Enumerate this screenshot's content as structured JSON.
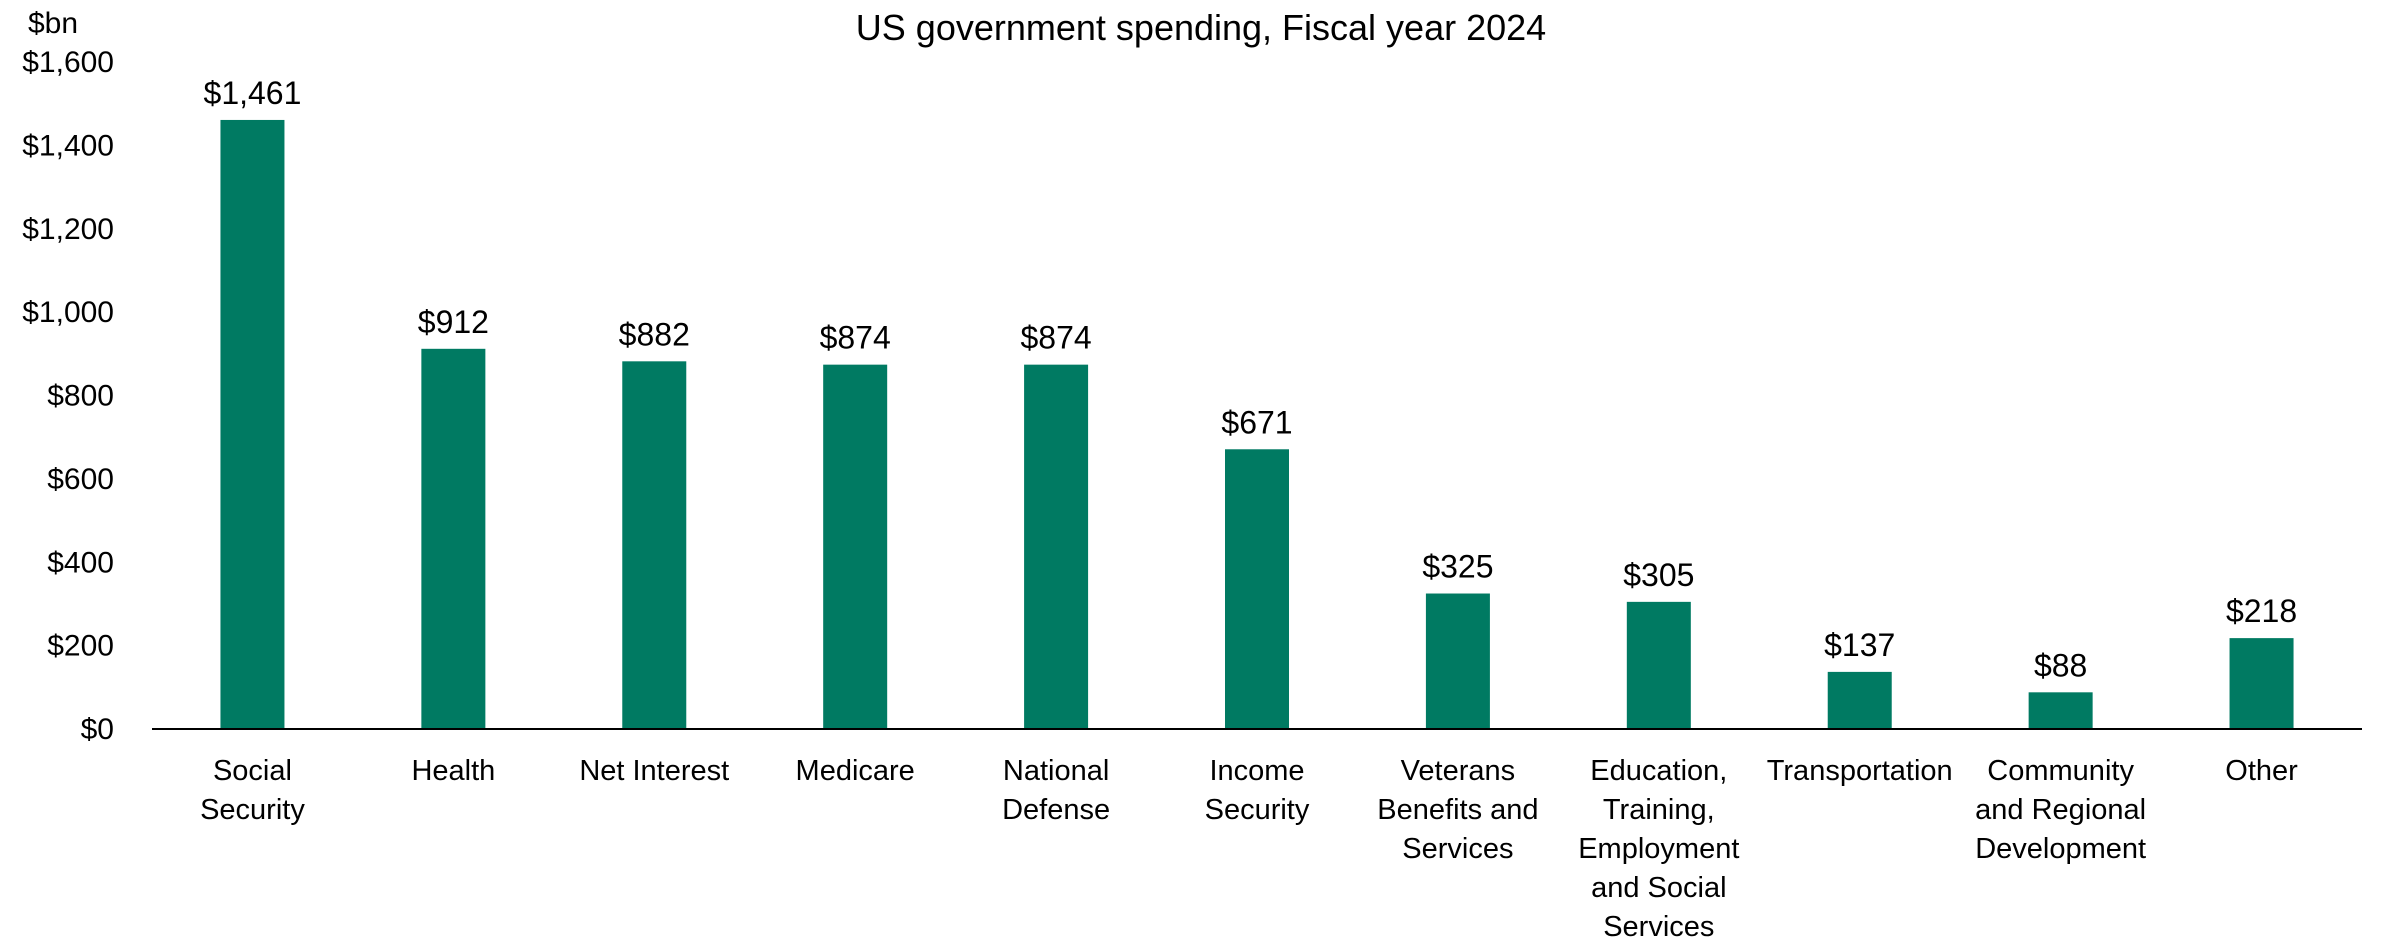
{
  "chart_data": {
    "type": "bar",
    "title": "US government spending, Fiscal year 2024",
    "unit_label": "$bn",
    "categories": [
      [
        "Social",
        "Security"
      ],
      [
        "Health"
      ],
      [
        "Net Interest"
      ],
      [
        "Medicare"
      ],
      [
        "National",
        "Defense"
      ],
      [
        "Income",
        "Security"
      ],
      [
        "Veterans",
        "Benefits and",
        "Services"
      ],
      [
        "Education,",
        "Training,",
        "Employment",
        "and Social",
        "Services"
      ],
      [
        "Transportation"
      ],
      [
        "Community",
        "and Regional",
        "Development"
      ],
      [
        "Other"
      ]
    ],
    "values": [
      1461,
      912,
      882,
      874,
      874,
      671,
      325,
      305,
      137,
      88,
      218
    ],
    "data_labels": [
      "$1,461",
      "$912",
      "$882",
      "$874",
      "$874",
      "$671",
      "$325",
      "$305",
      "$137",
      "$88",
      "$218"
    ],
    "ylim": [
      0,
      1600
    ],
    "y_ticks": [
      0,
      200,
      400,
      600,
      800,
      1000,
      1200,
      1400,
      1600
    ],
    "y_tick_labels": [
      "$0",
      "$200",
      "$400",
      "$600",
      "$800",
      "$1,000",
      "$1,200",
      "$1,400",
      "$1,600"
    ],
    "bar_color": "#007a62",
    "grid": false,
    "legend": "none"
  }
}
